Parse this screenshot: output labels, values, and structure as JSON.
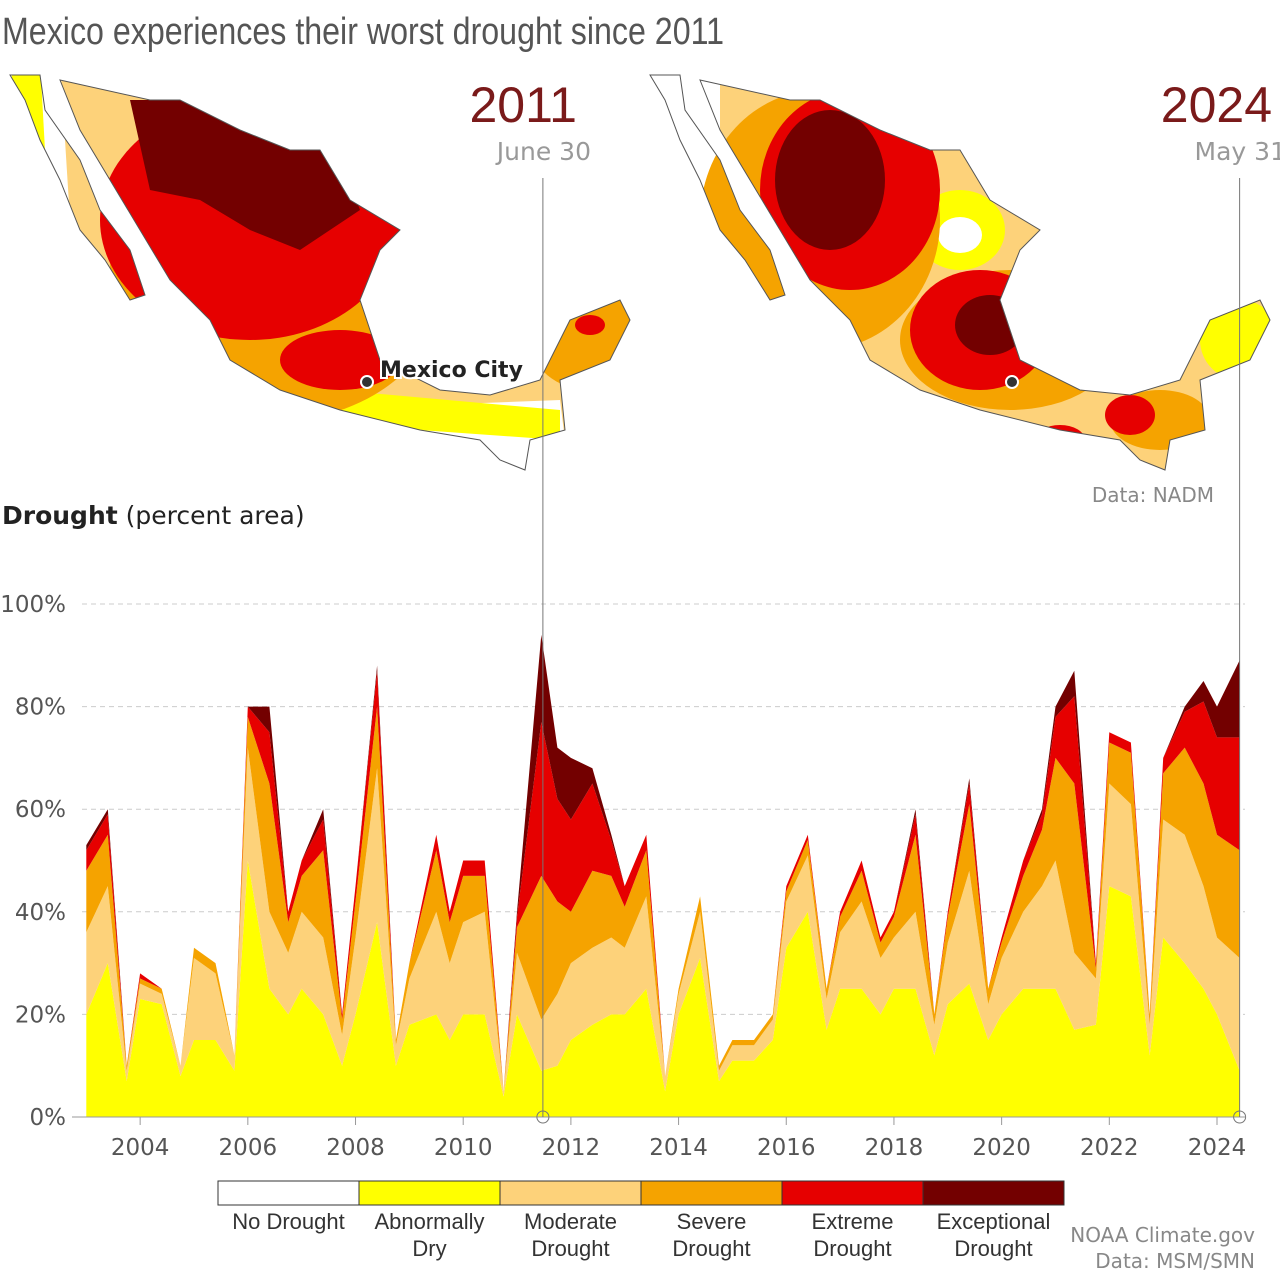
{
  "chart_data": {
    "type": "stacked_area",
    "title": "Mexico experiences their worst drought since 2011",
    "y_label": {
      "bold": "Drought",
      "rest": "(percent area)"
    },
    "maps": [
      {
        "year": "2011",
        "date": "June 30",
        "x": 2011.48
      },
      {
        "year": "2024",
        "date": "May 31",
        "x": 2024.42
      }
    ],
    "city_label": "Mexico City",
    "map_source": "Data: NADM",
    "credit": "NOAA Climate.gov",
    "source": "Data: MSM/SMN",
    "no_drought": {
      "name": "No Drought",
      "color": "#ffffff"
    },
    "xlim": [
      2002.92,
      2024.52
    ],
    "xticks": [
      2004,
      2006,
      2008,
      2010,
      2012,
      2014,
      2016,
      2018,
      2020,
      2022,
      2024
    ],
    "ylim": [
      0,
      100
    ],
    "yticks": [
      {
        "value": 0,
        "label": "0%"
      },
      {
        "value": 20,
        "label": "20%"
      },
      {
        "value": 40,
        "label": "40%"
      },
      {
        "value": 60,
        "label": "60%"
      },
      {
        "value": 80,
        "label": "80%"
      },
      {
        "value": 100,
        "label": "100%"
      }
    ],
    "grid": true,
    "x": [
      2003.0,
      2003.4,
      2003.75,
      2004.0,
      2004.4,
      2004.75,
      2005.0,
      2005.4,
      2005.75,
      2006.0,
      2006.4,
      2006.75,
      2007.0,
      2007.4,
      2007.75,
      2008.0,
      2008.4,
      2008.75,
      2009.0,
      2009.5,
      2009.75,
      2010.0,
      2010.4,
      2010.75,
      2011.0,
      2011.45,
      2011.75,
      2012.0,
      2012.4,
      2012.75,
      2013.0,
      2013.4,
      2013.75,
      2014.0,
      2014.4,
      2014.75,
      2015.0,
      2015.4,
      2015.75,
      2016.0,
      2016.4,
      2016.75,
      2017.0,
      2017.4,
      2017.75,
      2018.0,
      2018.4,
      2018.75,
      2019.0,
      2019.4,
      2019.75,
      2020.0,
      2020.4,
      2020.75,
      2021.0,
      2021.35,
      2021.75,
      2022.0,
      2022.4,
      2022.75,
      2023.0,
      2023.4,
      2023.75,
      2024.0,
      2024.42
    ],
    "series": [
      {
        "name": "Abnormally Dry",
        "color": "#ffff00",
        "values": [
          20,
          30,
          7,
          23,
          22,
          8,
          15,
          15,
          9,
          50,
          25,
          20,
          25,
          20,
          10,
          20,
          38,
          10,
          18,
          20,
          15,
          20,
          20,
          4,
          20,
          9,
          10,
          15,
          18,
          20,
          20,
          25,
          5,
          20,
          31,
          7,
          11,
          11,
          15,
          33,
          40,
          17,
          25,
          25,
          20,
          25,
          25,
          12,
          22,
          26,
          15,
          20,
          25,
          25,
          25,
          17,
          18,
          45,
          43,
          12,
          35,
          30,
          25,
          20,
          9
        ]
      },
      {
        "name": "Moderate Drought",
        "color": "#fdd27a",
        "values": [
          16,
          15,
          2,
          3,
          2,
          2,
          16,
          13,
          3,
          22,
          15,
          12,
          15,
          15,
          6,
          15,
          30,
          4,
          9,
          20,
          15,
          18,
          20,
          1,
          12,
          10,
          14,
          15,
          15,
          15,
          13,
          18,
          3,
          4,
          9,
          2,
          3,
          3,
          4,
          9,
          11,
          6,
          11,
          17,
          11,
          10,
          15,
          6,
          12,
          22,
          7,
          11,
          15,
          20,
          25,
          15,
          9,
          20,
          18,
          6,
          23,
          25,
          20,
          15,
          22
        ]
      },
      {
        "name": "Severe Drought",
        "color": "#f5a300",
        "values": [
          12,
          10,
          1,
          1,
          1,
          0,
          2,
          2,
          0,
          6,
          25,
          6,
          7,
          17,
          3,
          7,
          12,
          1,
          3,
          12,
          8,
          9,
          7,
          0,
          5,
          28,
          18,
          10,
          15,
          12,
          8,
          9,
          0,
          1,
          3,
          1,
          1,
          1,
          1,
          2,
          3,
          2,
          3,
          6,
          3,
          4,
          15,
          2,
          5,
          13,
          3,
          3,
          7,
          11,
          20,
          33,
          2,
          8,
          10,
          2,
          9,
          17,
          20,
          20,
          21
        ]
      },
      {
        "name": "Extreme Drought",
        "color": "#e60000",
        "values": [
          4,
          4,
          0,
          1,
          0,
          0,
          0,
          0,
          0,
          2,
          10,
          2,
          3,
          6,
          1,
          3,
          7,
          0,
          0,
          3,
          2,
          3,
          3,
          0,
          2,
          30,
          20,
          18,
          17,
          7,
          4,
          3,
          0,
          0,
          0,
          0,
          0,
          0,
          0,
          1,
          1,
          0,
          1,
          2,
          1,
          1,
          4,
          0,
          1,
          4,
          0,
          1,
          3,
          3,
          8,
          17,
          1,
          2,
          2,
          0,
          3,
          7,
          16,
          19,
          22
        ]
      },
      {
        "name": "Exceptional Drought",
        "color": "#730000",
        "values": [
          1,
          1,
          0,
          0,
          0,
          0,
          0,
          0,
          0,
          0,
          5,
          0,
          0,
          2,
          0,
          0,
          1,
          0,
          0,
          0,
          0,
          0,
          0,
          0,
          1,
          17,
          10,
          12,
          3,
          1,
          0,
          0,
          0,
          0,
          0,
          0,
          0,
          0,
          0,
          0,
          0,
          0,
          0,
          0,
          0,
          0,
          1,
          0,
          0,
          1,
          0,
          0,
          0,
          1,
          2,
          5,
          0,
          0,
          0,
          0,
          0,
          1,
          4,
          6,
          15
        ]
      }
    ]
  }
}
